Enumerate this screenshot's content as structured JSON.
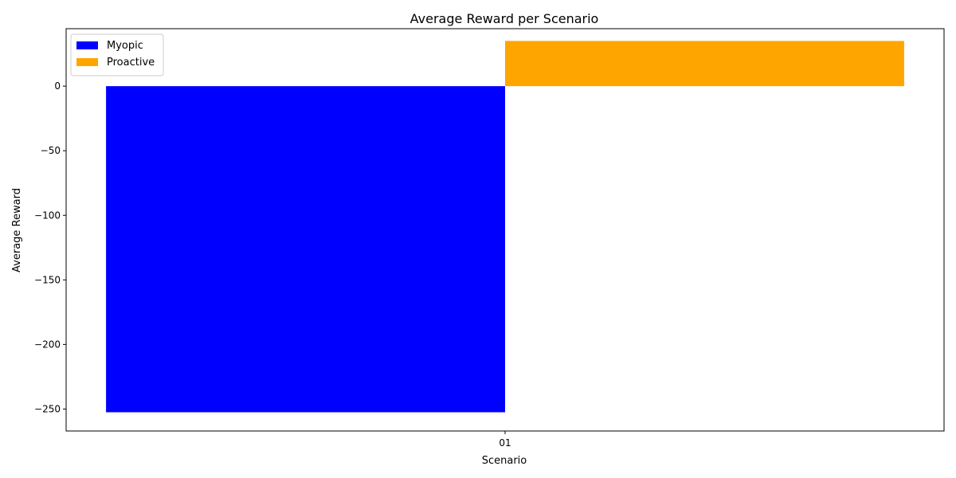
{
  "chart_data": {
    "type": "bar",
    "title": "Average Reward per Scenario",
    "xlabel": "Scenario",
    "ylabel": "Average Reward",
    "categories": [
      "01"
    ],
    "series": [
      {
        "name": "Myopic",
        "color": "#0000ff",
        "values": [
          -252.5
        ]
      },
      {
        "name": "Proactive",
        "color": "#ffa500",
        "values": [
          35
        ]
      }
    ],
    "ylim": [
      -267,
      44.5
    ],
    "yticks": [
      -250,
      -200,
      -150,
      -100,
      -50,
      0
    ],
    "grid": false,
    "legend_position": "top-left"
  }
}
